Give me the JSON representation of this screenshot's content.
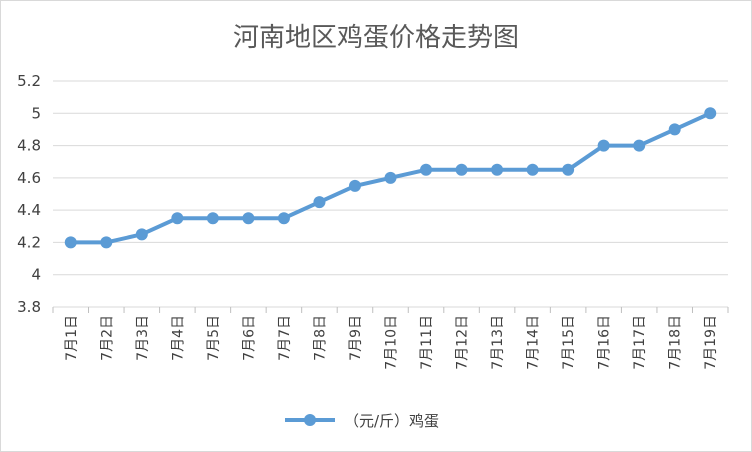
{
  "chart_data": {
    "type": "line",
    "title": "河南地区鸡蛋价格走势图",
    "categories": [
      "7月1日",
      "7月2日",
      "7月3日",
      "7月4日",
      "7月5日",
      "7月6日",
      "7月7日",
      "7月8日",
      "7月9日",
      "7月10日",
      "7月11日",
      "7月12日",
      "7月13日",
      "7月14日",
      "7月15日",
      "7月16日",
      "7月17日",
      "7月18日",
      "7月19日"
    ],
    "series": [
      {
        "name": "（元/斤）鸡蛋",
        "values": [
          4.2,
          4.2,
          4.25,
          4.35,
          4.35,
          4.35,
          4.35,
          4.45,
          4.55,
          4.6,
          4.65,
          4.65,
          4.65,
          4.65,
          4.65,
          4.8,
          4.8,
          4.9,
          5.0
        ],
        "color": "#5b9bd5"
      }
    ],
    "ylim": [
      3.8,
      5.2
    ],
    "yticks": [
      "3.8",
      "4",
      "4.2",
      "4.4",
      "4.6",
      "4.8",
      "5",
      "5.2"
    ],
    "grid": true,
    "legend": "bottom"
  }
}
